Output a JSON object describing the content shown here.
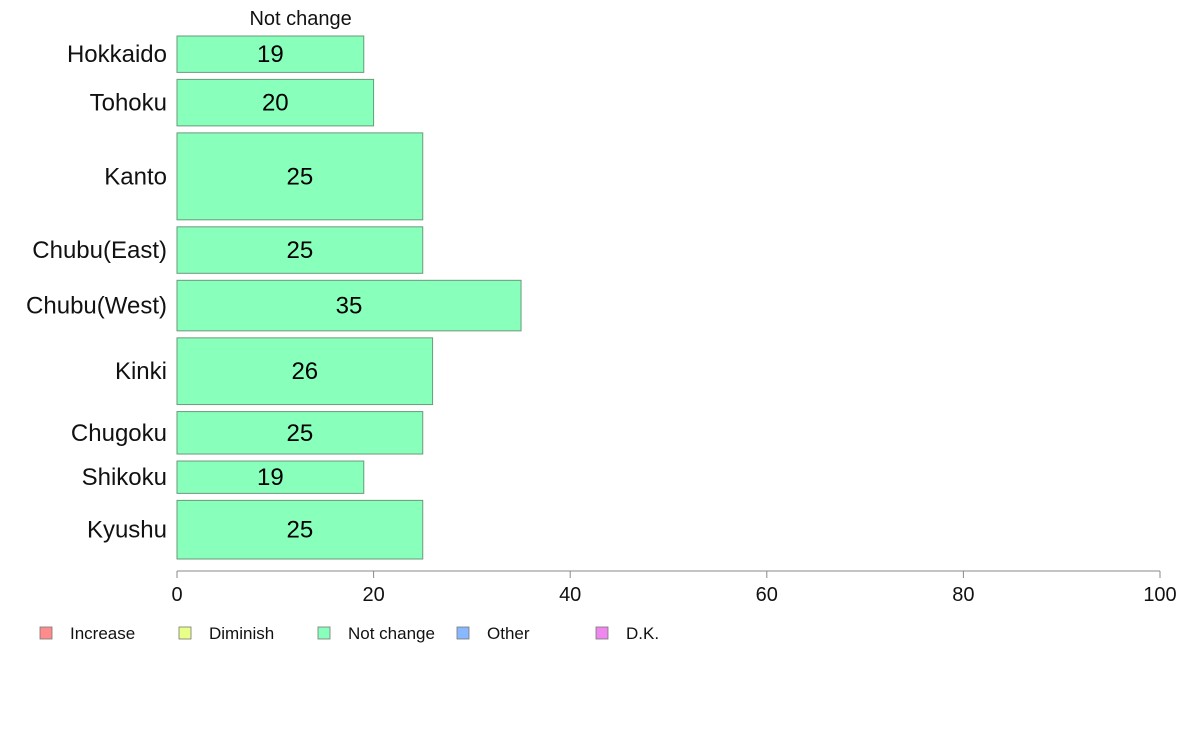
{
  "chart_data": {
    "type": "bar",
    "orientation": "horizontal",
    "stacked": true,
    "categories": [
      "Hokkaido",
      "Tohoku",
      "Kanto",
      "Chubu(East)",
      "Chubu(West)",
      "Kinki",
      "Chugoku",
      "Shikoku",
      "Kyushu"
    ],
    "relative_bar_thickness": [
      36,
      46,
      86,
      46,
      50,
      66,
      42,
      32,
      58
    ],
    "series": [
      {
        "name": "Not change",
        "color": "#88ffbb",
        "values": [
          19,
          20,
          25,
          25,
          35,
          26,
          25,
          19,
          25
        ]
      }
    ],
    "series_title": "Not change",
    "xlim": [
      0,
      100
    ],
    "xticks": [
      0,
      20,
      40,
      60,
      80,
      100
    ],
    "grid": false,
    "legend": {
      "placement": "bottom-left",
      "entries": [
        {
          "label": "Increase",
          "color": "#ff8c8c"
        },
        {
          "label": "Diminish",
          "color": "#e8ff88"
        },
        {
          "label": "Not change",
          "color": "#88ffbb"
        },
        {
          "label": "Other",
          "color": "#88b8ff"
        },
        {
          "label": "D.K.",
          "color": "#ee88ee"
        }
      ]
    }
  }
}
